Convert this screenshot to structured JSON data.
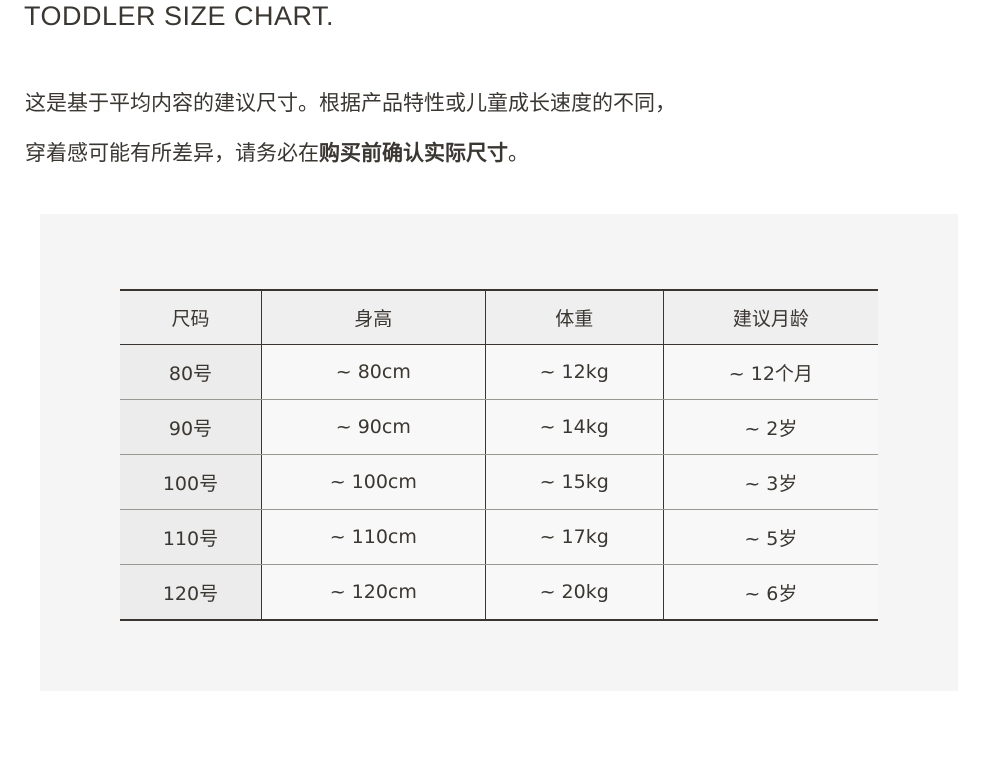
{
  "title": "TODDLER SIZE CHART.",
  "description": {
    "line1": "这是基于平均内容的建议尺寸。根据产品特性或儿童成长速度的不同，",
    "line2_normal": "穿着感可能有所差异，请务必在",
    "line2_bold": "购买前确认实际尺寸",
    "line2_end": "。"
  },
  "table": {
    "headers": [
      "尺码",
      "身高",
      "体重",
      "建议月龄"
    ],
    "rows": [
      [
        "80号",
        "~ 80cm",
        "~ 12kg",
        "~ 12个月"
      ],
      [
        "90号",
        "~ 90cm",
        "~ 14kg",
        "~ 2岁"
      ],
      [
        "100号",
        "~ 100cm",
        "~ 15kg",
        "~ 3岁"
      ],
      [
        "110号",
        "~ 110cm",
        "~ 17kg",
        "~ 5岁"
      ],
      [
        "120号",
        "~ 120cm",
        "~ 20kg",
        "~ 6岁"
      ]
    ]
  }
}
